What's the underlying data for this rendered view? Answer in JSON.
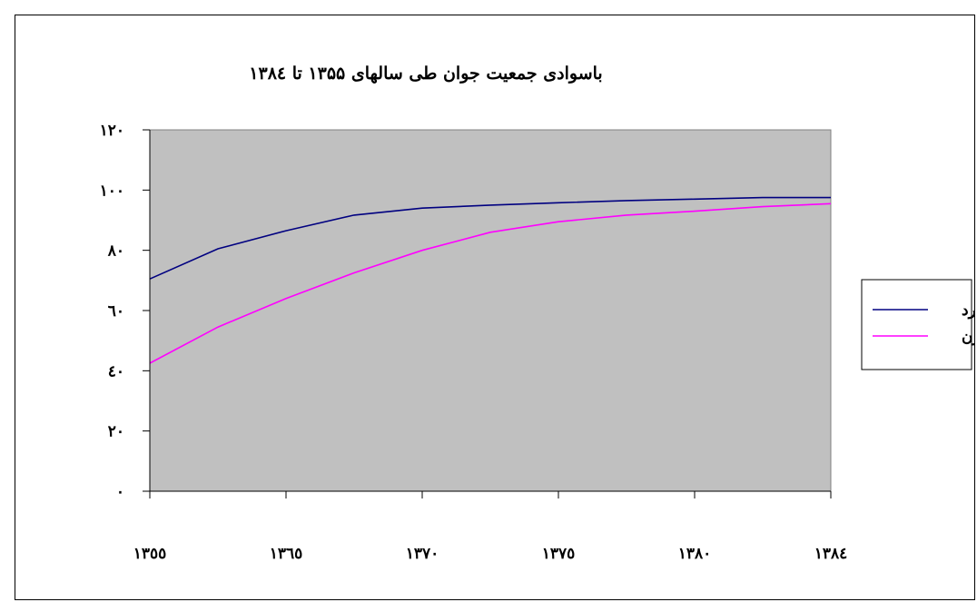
{
  "chart_data": {
    "type": "line",
    "title": "باسوادی جمعیت جوان طی سالهای ۱۳۵۵ تا ۱۳۸٤",
    "xlabel": "",
    "ylabel": "",
    "x_ticks": [
      1355,
      1365,
      1370,
      1375,
      1380,
      1384
    ],
    "x_tick_labels": [
      "١٣٥٥",
      "١٣٦٥",
      "١٣٧٠",
      "١٣٧٥",
      "١٣٨٠",
      "١٣٨٤"
    ],
    "y_ticks": [
      0,
      20,
      40,
      60,
      80,
      100,
      120
    ],
    "y_tick_labels": [
      "٠",
      "٢٠",
      "٤٠",
      "٦٠",
      "٨٠",
      "١٠٠",
      "١٢٠"
    ],
    "ylim": [
      0,
      120
    ],
    "plot_background": "#C0C0C0",
    "grid": false,
    "legend_position": "right",
    "x_position_index": [
      0,
      0.5,
      1,
      1.5,
      2,
      2.5,
      3,
      3.5,
      4,
      4.5,
      5
    ],
    "series": [
      {
        "name": "مرد",
        "color": "#000080",
        "values": [
          70.5,
          80.5,
          86.5,
          91.7,
          94.0,
          95.0,
          95.8,
          96.5,
          97.0,
          97.5,
          97.5
        ]
      },
      {
        "name": "زن",
        "color": "#FF00FF",
        "values": [
          42.5,
          54.5,
          64.0,
          72.5,
          80.0,
          86.0,
          89.5,
          91.7,
          93.0,
          94.5,
          95.5
        ]
      }
    ]
  }
}
